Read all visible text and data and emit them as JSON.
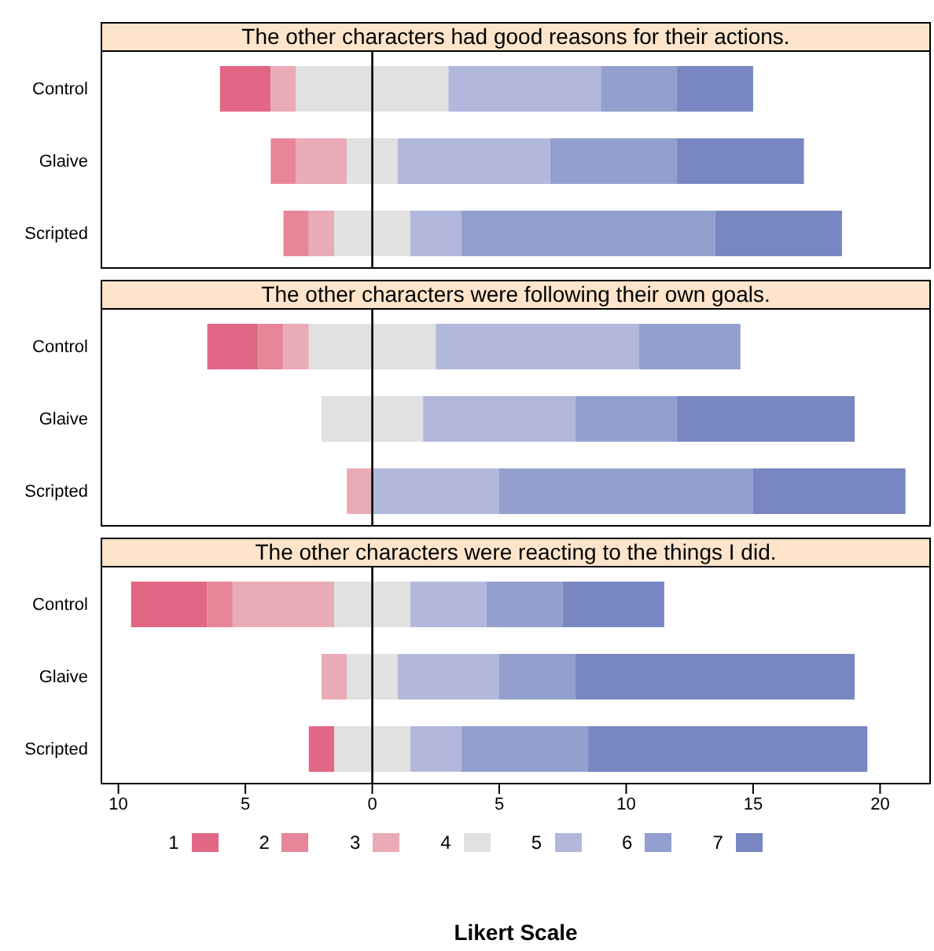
{
  "chart_data": [
    {
      "type": "bar",
      "title": "The other characters had good reasons for their actions.",
      "orientation": "horizontal",
      "categories": [
        "Control",
        "Glaive",
        "Scripted"
      ],
      "series": [
        {
          "color": "#e16784",
          "values": [
            2,
            null,
            null
          ],
          "base": [
            -6,
            null,
            null
          ]
        },
        {
          "color": "#e88699",
          "values": [
            null,
            1,
            1
          ],
          "base": [
            null,
            -4,
            -3.5
          ]
        },
        {
          "color": "#e9abb6",
          "values": [
            1,
            2,
            1
          ],
          "base": [
            -4,
            -3,
            -2.5
          ]
        },
        {
          "color": "#e1e1e1",
          "values": [
            6,
            2,
            3
          ],
          "base": [
            -3,
            -1,
            -1.5
          ]
        },
        {
          "color": "#b2b8db",
          "values": [
            6,
            6,
            2
          ],
          "base": [
            3,
            1,
            1.5
          ]
        },
        {
          "color": "#939fce",
          "values": [
            3,
            5,
            10
          ],
          "base": [
            9,
            7,
            3.5
          ]
        },
        {
          "color": "#7887c2",
          "values": [
            3,
            5,
            5
          ],
          "base": [
            12,
            12,
            13.5
          ]
        }
      ],
      "xlim": [
        -10.7,
        22
      ],
      "tick_labels": "y",
      "ref_lines": [
        {
          "axis": "x",
          "value": 0,
          "color": "#000000"
        }
      ]
    },
    {
      "type": "bar",
      "title": "The other characters were following their own goals.",
      "orientation": "horizontal",
      "categories": [
        "Control",
        "Glaive",
        "Scripted"
      ],
      "series": [
        {
          "color": "#e16784",
          "values": [
            2,
            null,
            null
          ],
          "base": [
            -6.5,
            null,
            null
          ]
        },
        {
          "color": "#e88699",
          "values": [
            1,
            null,
            null
          ],
          "base": [
            -4.5,
            null,
            null
          ]
        },
        {
          "color": "#e9abb6",
          "values": [
            1,
            null,
            1
          ],
          "base": [
            -3.5,
            null,
            -1
          ]
        },
        {
          "color": "#e1e1e1",
          "values": [
            5,
            4,
            null
          ],
          "base": [
            -2.5,
            -2,
            null
          ]
        },
        {
          "color": "#b2b8db",
          "values": [
            8,
            6,
            5
          ],
          "base": [
            2.5,
            2,
            0
          ]
        },
        {
          "color": "#939fce",
          "values": [
            4,
            4,
            10
          ],
          "base": [
            10.5,
            8,
            5
          ]
        },
        {
          "color": "#7887c2",
          "values": [
            null,
            7,
            6
          ],
          "base": [
            null,
            12,
            15
          ]
        }
      ],
      "xlim": [
        -10.7,
        22
      ],
      "tick_labels": "y",
      "ref_lines": [
        {
          "axis": "x",
          "value": 0,
          "color": "#000000"
        }
      ]
    },
    {
      "type": "bar",
      "title": "The other characters were reacting to the things I did.",
      "xlabel": "Likert Scale",
      "orientation": "horizontal",
      "categories": [
        "Control",
        "Glaive",
        "Scripted"
      ],
      "series": [
        {
          "name": "1",
          "color": "#e16784",
          "values": [
            3,
            null,
            1
          ],
          "base": [
            -9.5,
            null,
            -2.5
          ]
        },
        {
          "name": "2",
          "color": "#e88699",
          "values": [
            1,
            null,
            null
          ],
          "base": [
            -6.5,
            null,
            null
          ]
        },
        {
          "name": "3",
          "color": "#e9abb6",
          "values": [
            4,
            1,
            null
          ],
          "base": [
            -5.5,
            -2,
            null
          ]
        },
        {
          "name": "4",
          "color": "#e1e1e1",
          "values": [
            3,
            2,
            3
          ],
          "base": [
            -1.5,
            -1,
            -1.5
          ]
        },
        {
          "name": "5",
          "color": "#b2b8db",
          "values": [
            3,
            4,
            2
          ],
          "base": [
            1.5,
            1,
            1.5
          ]
        },
        {
          "name": "6",
          "color": "#939fce",
          "values": [
            3,
            3,
            5
          ],
          "base": [
            4.5,
            5,
            3.5
          ]
        },
        {
          "name": "7",
          "color": "#7887c2",
          "values": [
            4,
            11,
            11
          ],
          "base": [
            7.5,
            8,
            8.5
          ]
        }
      ],
      "xlim": [
        -10.7,
        22
      ],
      "xticks": [
        {
          "value": -10,
          "label": "10"
        },
        {
          "value": -5,
          "label": "5"
        },
        0,
        5,
        10,
        15,
        20
      ],
      "legend": "bottom",
      "ref_lines": [
        {
          "axis": "x",
          "value": 0,
          "color": "#000000"
        }
      ]
    }
  ]
}
